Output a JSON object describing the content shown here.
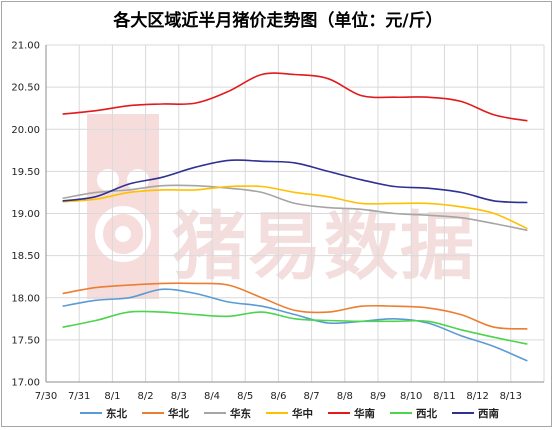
{
  "chart_data": {
    "type": "line",
    "title": "各大区域近半月猪价走势图（单位：元/斤）",
    "watermark": "猪易数据",
    "x": [
      "7/30",
      "7/31",
      "8/1",
      "8/2",
      "8/3",
      "8/4",
      "8/5",
      "8/6",
      "8/7",
      "8/8",
      "8/9",
      "8/10",
      "8/11",
      "8/12",
      "8/13"
    ],
    "ylim": [
      17.0,
      21.0
    ],
    "yticks": [
      "17.00",
      "17.50",
      "18.00",
      "18.50",
      "19.00",
      "19.50",
      "20.00",
      "20.50",
      "21.00"
    ],
    "grid": true,
    "legend_position": "bottom",
    "series": [
      {
        "name": "东北",
        "color": "#5b9bd5",
        "values": [
          17.9,
          17.97,
          18.0,
          18.1,
          18.05,
          17.95,
          17.9,
          17.8,
          17.7,
          17.72,
          17.75,
          17.7,
          17.55,
          17.42,
          17.25
        ]
      },
      {
        "name": "华北",
        "color": "#ed7d31",
        "values": [
          18.05,
          18.12,
          18.15,
          18.17,
          18.17,
          18.15,
          18.0,
          17.85,
          17.83,
          17.9,
          17.9,
          17.88,
          17.8,
          17.65,
          17.63
        ]
      },
      {
        "name": "华东",
        "color": "#a5a5a5",
        "values": [
          19.18,
          19.25,
          19.28,
          19.33,
          19.33,
          19.3,
          19.25,
          19.12,
          19.07,
          19.05,
          19.0,
          18.98,
          18.95,
          18.88,
          18.8
        ]
      },
      {
        "name": "华中",
        "color": "#ffc000",
        "values": [
          19.14,
          19.17,
          19.25,
          19.28,
          19.28,
          19.32,
          19.32,
          19.25,
          19.2,
          19.12,
          19.12,
          19.12,
          19.08,
          19.0,
          18.82
        ]
      },
      {
        "name": "华南",
        "color": "#e31a1c",
        "values": [
          20.18,
          20.22,
          20.28,
          20.3,
          20.31,
          20.45,
          20.65,
          20.65,
          20.6,
          20.4,
          20.38,
          20.38,
          20.33,
          20.17,
          20.1
        ]
      },
      {
        "name": "西北",
        "color": "#4dd44d",
        "values": [
          17.65,
          17.73,
          17.83,
          17.83,
          17.8,
          17.78,
          17.83,
          17.75,
          17.73,
          17.72,
          17.72,
          17.72,
          17.62,
          17.53,
          17.45
        ]
      },
      {
        "name": "西南",
        "color": "#2e3192",
        "values": [
          19.15,
          19.2,
          19.35,
          19.43,
          19.55,
          19.63,
          19.62,
          19.6,
          19.5,
          19.4,
          19.32,
          19.3,
          19.25,
          19.15,
          19.13
        ]
      }
    ]
  }
}
